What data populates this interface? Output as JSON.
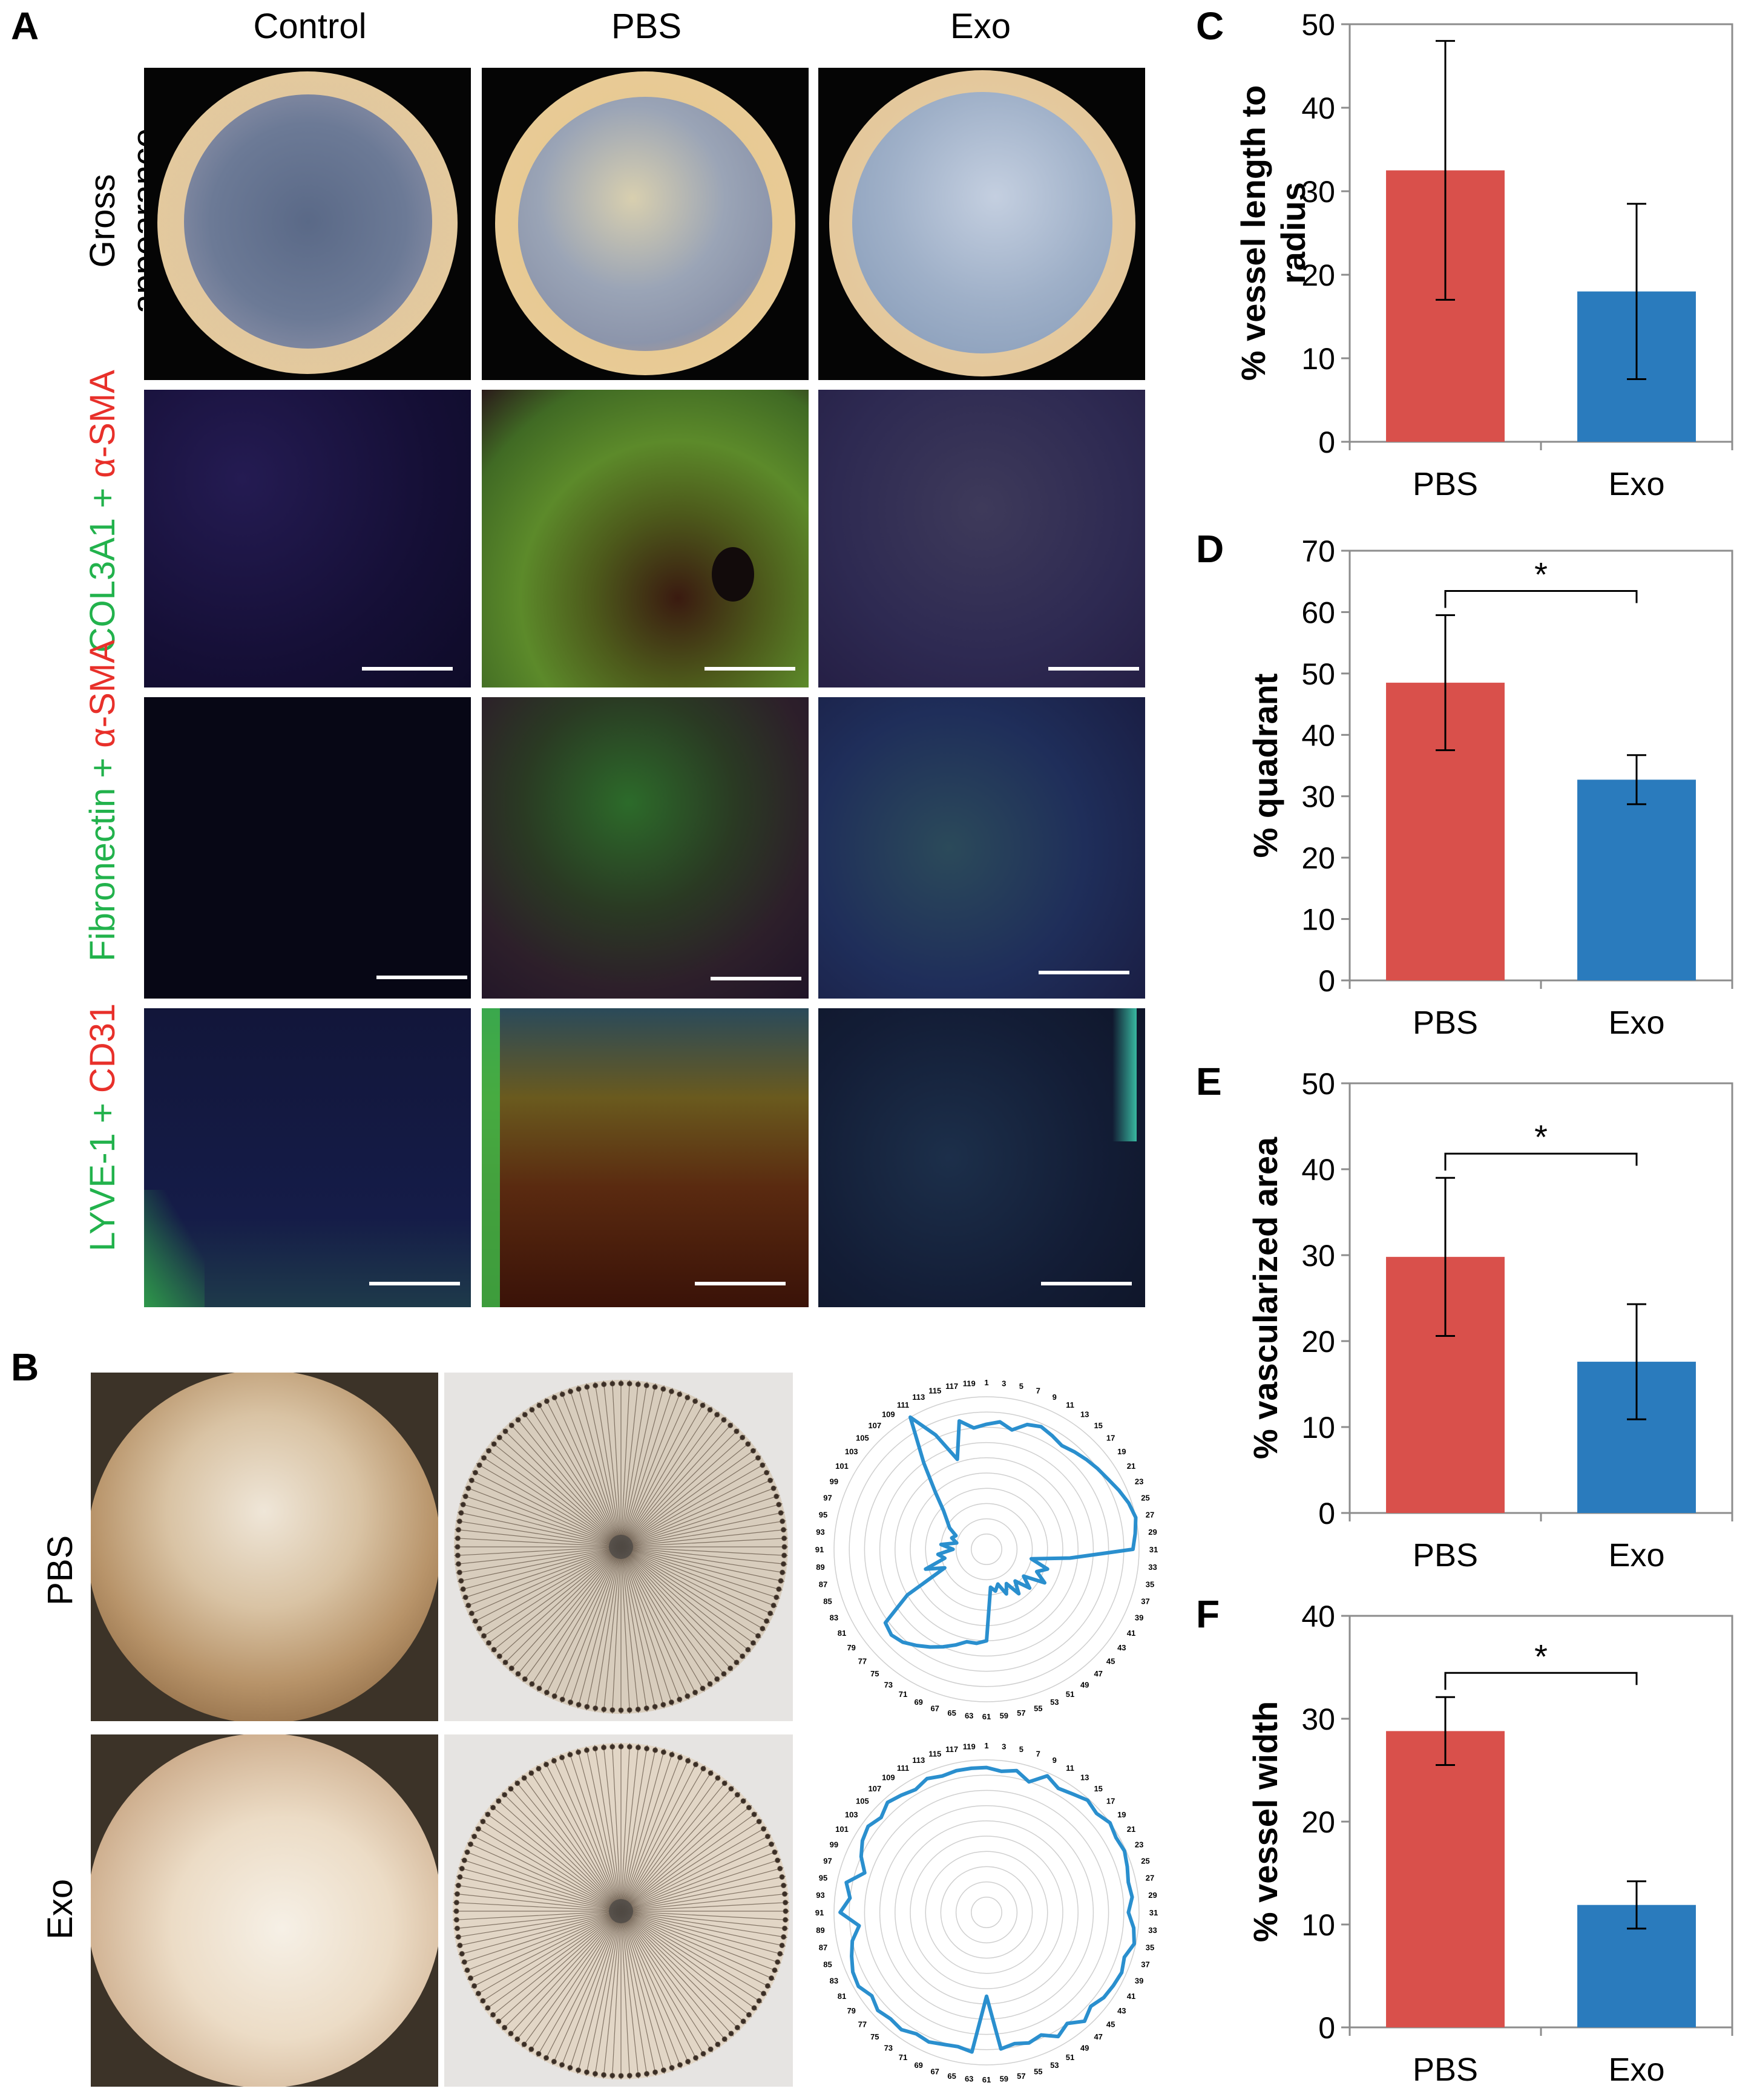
{
  "figure": {
    "panel_letters": [
      "A",
      "B",
      "C",
      "D",
      "E",
      "F"
    ],
    "panel_a": {
      "columns": [
        "Control",
        "PBS",
        "Exo"
      ],
      "rows": [
        {
          "line1": "Gross",
          "line2": "appearance"
        },
        {
          "green": "COL3A1 +",
          "red": "α-SMA"
        },
        {
          "green": "Fibronectin +",
          "red": "α-SMA"
        },
        {
          "green": "LYVE-1 +",
          "red": "CD31"
        }
      ]
    },
    "panel_b": {
      "rows": [
        "PBS",
        "Exo"
      ],
      "radar_labels": [
        "1",
        "3",
        "5",
        "7",
        "9",
        "11",
        "13",
        "15",
        "17",
        "19",
        "21",
        "23",
        "25",
        "27",
        "29",
        "31",
        "33",
        "35",
        "37",
        "39",
        "41",
        "43",
        "45",
        "47",
        "49",
        "51",
        "53",
        "55",
        "57",
        "59",
        "61",
        "63",
        "65",
        "67",
        "69",
        "71",
        "73",
        "75",
        "77",
        "79",
        "81",
        "83",
        "85",
        "87",
        "89",
        "91",
        "93",
        "95",
        "97",
        "99",
        "101",
        "103",
        "105",
        "107",
        "109",
        "111",
        "113",
        "115",
        "117",
        "119"
      ]
    },
    "colors": {
      "pbs": "#d9504b",
      "exo": "#2a7bbd",
      "radar": "#2a8fce"
    }
  },
  "chart_data": [
    {
      "panel": "C",
      "type": "bar",
      "categories": [
        "PBS",
        "Exo"
      ],
      "values": [
        32.5,
        18
      ],
      "error": [
        15.5,
        10.5
      ],
      "ylabel_line1": "% vessel length to",
      "ylabel_line2": "radius",
      "ylim": [
        0,
        50
      ],
      "yticks": [
        "0",
        "10",
        "20",
        "30",
        "40",
        "50"
      ],
      "significance": null
    },
    {
      "panel": "D",
      "type": "bar",
      "categories": [
        "PBS",
        "Exo"
      ],
      "values": [
        48.5,
        32.7
      ],
      "error": [
        11,
        4
      ],
      "ylabel_line1": "% quadrant",
      "ylabel_line2": "",
      "ylim": [
        0,
        70
      ],
      "yticks": [
        "0",
        "10",
        "20",
        "30",
        "40",
        "50",
        "60",
        "70"
      ],
      "significance": "*"
    },
    {
      "panel": "E",
      "type": "bar",
      "categories": [
        "PBS",
        "Exo"
      ],
      "values": [
        29.8,
        17.6
      ],
      "error": [
        9.2,
        6.7
      ],
      "ylabel_line1": "% vascularized area",
      "ylabel_line2": "",
      "ylim": [
        0,
        50
      ],
      "yticks": [
        "0",
        "10",
        "20",
        "30",
        "40",
        "50"
      ],
      "significance": "*"
    },
    {
      "panel": "F",
      "type": "bar",
      "categories": [
        "PBS",
        "Exo"
      ],
      "values": [
        28.8,
        11.9
      ],
      "error": [
        3.3,
        2.3
      ],
      "ylabel_line1": "% vessel width",
      "ylabel_line2": "",
      "ylim": [
        0,
        40
      ],
      "yticks": [
        "0",
        "10",
        "20",
        "30",
        "40"
      ],
      "significance": "*"
    },
    {
      "panel": "B-PBS",
      "type": "radar",
      "series": [
        {
          "name": "PBS",
          "values": [
            0.82,
            0.84,
            0.8,
            0.86,
            0.88,
            0.86,
            0.84,
            0.86,
            0.88,
            0.9,
            0.92,
            0.95,
            0.98,
            1.0,
            0.98,
            0.96,
            0.55,
            0.3,
            0.42,
            0.36,
            0.44,
            0.3,
            0.38,
            0.28,
            0.36,
            0.26,
            0.32,
            0.24,
            0.28,
            0.25,
            0.6,
            0.62,
            0.62,
            0.66,
            0.7,
            0.74,
            0.78,
            0.82,
            0.84,
            0.82,
            0.6,
            0.3,
            0.42,
            0.28,
            0.32,
            0.22,
            0.3,
            0.2,
            0.24,
            0.22,
            0.28,
            0.32,
            0.38,
            0.5,
            0.7,
            1.0,
            0.82,
            0.62,
            0.86,
            0.8
          ]
        }
      ]
    },
    {
      "panel": "B-Exo",
      "type": "radar",
      "series": [
        {
          "name": "Exo",
          "values": [
            0.95,
            0.93,
            0.95,
            0.9,
            0.98,
            0.94,
            0.96,
            0.99,
            0.97,
            1.0,
            0.98,
            0.99,
            0.97,
            0.95,
            0.96,
            0.93,
            0.97,
            0.99,
            0.95,
            0.97,
            0.96,
            0.95,
            0.92,
            0.96,
            0.9,
            0.94,
            0.88,
            0.9,
            0.88,
            0.9,
            0.55,
            0.92,
            0.9,
            0.91,
            0.93,
            0.92,
            0.95,
            0.94,
            0.96,
            0.93,
            0.97,
            0.96,
            0.93,
            0.9,
            0.84,
            0.96,
            0.9,
            0.94,
            0.84,
            0.9,
            0.94,
            0.96,
            0.93,
            0.97,
            0.95,
            0.93,
            0.96,
            0.94,
            0.95,
            0.95
          ]
        }
      ]
    }
  ]
}
